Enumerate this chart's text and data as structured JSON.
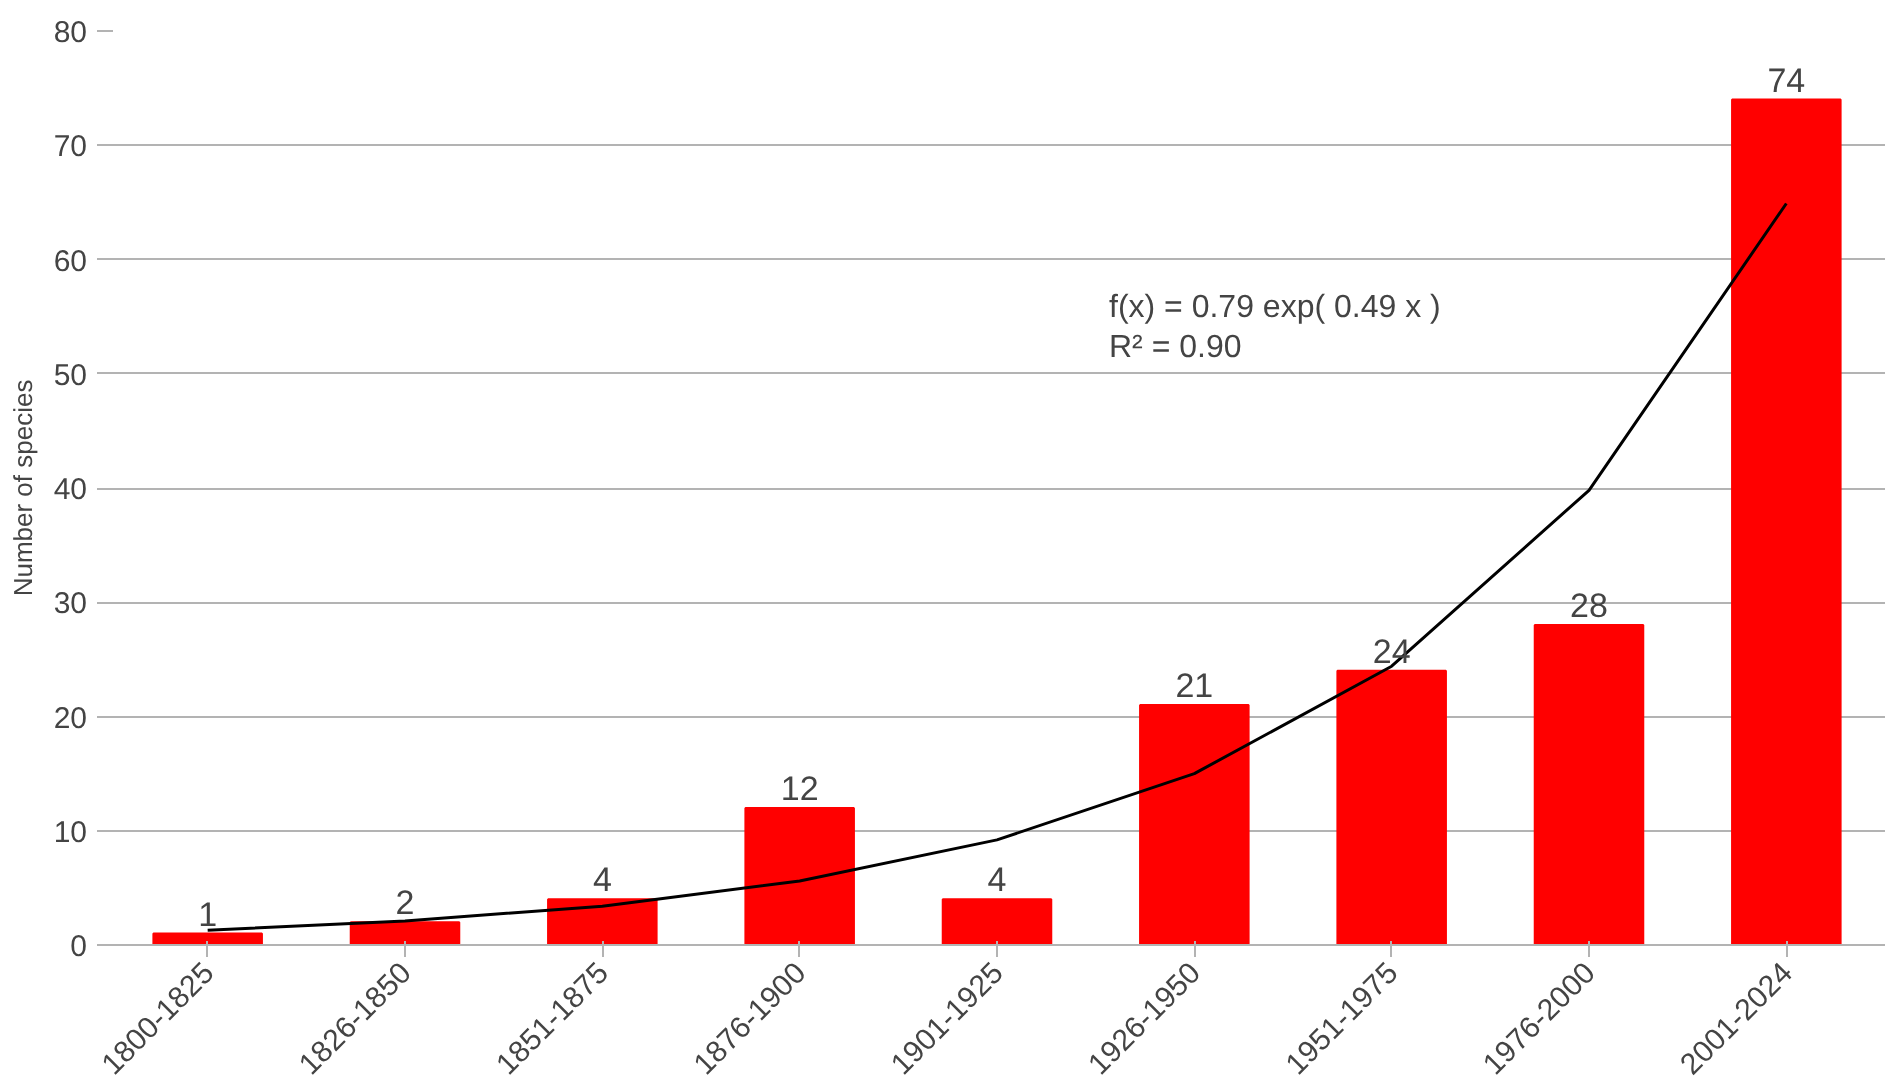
{
  "chart_data": {
    "type": "bar",
    "ylabel": "Number of species",
    "categories": [
      "1800-1825",
      "1826-1850",
      "1851-1875",
      "1876-1900",
      "1901-1925",
      "1926-1950",
      "1951-1975",
      "1976-2000",
      "2001-2024"
    ],
    "series": [
      {
        "color": "#ff0000",
        "values": [
          1,
          2,
          4,
          12,
          4,
          21,
          24,
          28,
          74
        ],
        "value_labels": [
          "1",
          "2",
          "4",
          "12",
          "4",
          "21",
          "24",
          "28",
          "74"
        ]
      },
      {
        "type": "line",
        "color": "#000000",
        "x": [
          "1800-1825",
          "1826-1850",
          "1851-1875",
          "1876-1900",
          "1901-1925",
          "1926-1950",
          "1951-1975",
          "1976-2000",
          "2001-2024"
        ],
        "values": [
          1.3,
          2.1,
          3.4,
          5.6,
          9.2,
          15.0,
          24.4,
          39.8,
          64.9
        ]
      }
    ],
    "ylim": [
      0,
      80
    ],
    "yticks": [
      0,
      10,
      20,
      30,
      40,
      50,
      60,
      70,
      80
    ],
    "grid": "y",
    "annotations": [
      "f(x) = 0.79 exp( 0.49 x )",
      "R² = 0.90"
    ]
  }
}
